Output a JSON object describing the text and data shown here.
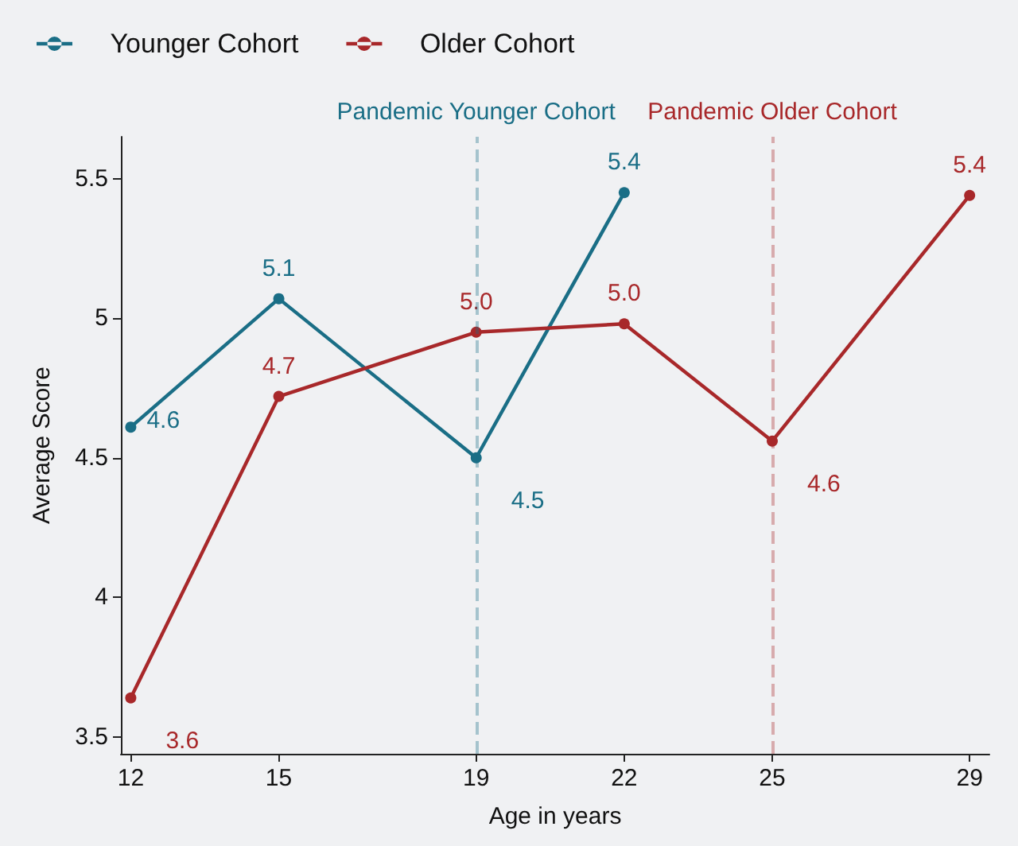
{
  "chart_data": {
    "type": "line",
    "xlabel": "Age in years",
    "ylabel": "Average Score",
    "xlim": [
      11.8,
      29.4
    ],
    "xticks": [
      12,
      15,
      19,
      22,
      25,
      29
    ],
    "ylim": [
      3.44,
      5.65
    ],
    "yticks": [
      {
        "value": 3.5,
        "label": "3.5"
      },
      {
        "value": 4,
        "label": "4"
      },
      {
        "value": 4.5,
        "label": "4.5"
      },
      {
        "value": 5,
        "label": "5"
      },
      {
        "value": 5.5,
        "label": "5.5"
      }
    ],
    "series": [
      {
        "name": "Younger Cohort",
        "color": "#1a6e86",
        "x": [
          12,
          15,
          19,
          22
        ],
        "values": [
          4.61,
          5.07,
          4.5,
          5.45
        ],
        "value_labels": [
          "4.6",
          "5.1",
          "4.5",
          "5.4"
        ]
      },
      {
        "name": "Older Cohort",
        "color": "#a8282a",
        "x": [
          12,
          15,
          19,
          22,
          25,
          29
        ],
        "values": [
          3.64,
          4.72,
          4.95,
          4.98,
          4.56,
          5.44
        ],
        "value_labels": [
          "3.6",
          "4.7",
          "5.0",
          "5.0",
          "4.6",
          "5.4"
        ]
      }
    ],
    "ref_lines": [
      {
        "axis": "x",
        "value": 19,
        "label": "Pandemic Younger Cohort",
        "color": "#1a6e86",
        "line_style": "dashed"
      },
      {
        "axis": "x",
        "value": 25,
        "label": "Pandemic Older Cohort",
        "color": "#a8282a",
        "line_style": "dashed"
      }
    ],
    "legend": "top left",
    "marker": "circle",
    "line_style": "solid",
    "grid": false
  }
}
